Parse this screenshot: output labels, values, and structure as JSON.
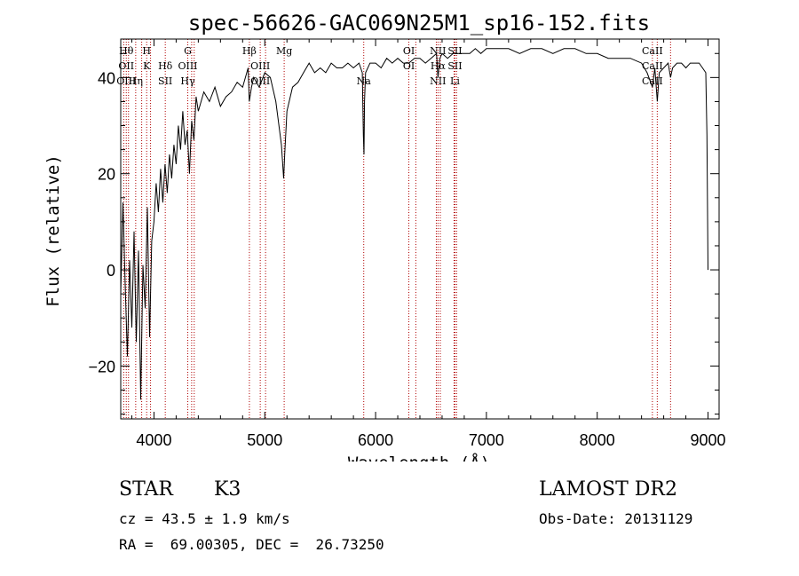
{
  "chart_data": {
    "type": "line",
    "title": "spec-56626-GAC069N25M1_sp16-152.fits",
    "xlabel": "Wavelength (Å)",
    "ylabel": "Flux (relative)",
    "xlim": [
      3700,
      9100
    ],
    "ylim": [
      -31,
      48
    ],
    "x_ticks": [
      4000,
      5000,
      6000,
      7000,
      8000,
      9000
    ],
    "y_ticks": [
      -20,
      0,
      20,
      40
    ],
    "grid": false,
    "series": [
      {
        "x": [
          3700,
          3720,
          3740,
          3760,
          3780,
          3800,
          3820,
          3840,
          3860,
          3880,
          3900,
          3920,
          3940,
          3960,
          3980,
          4000,
          4020,
          4040,
          4060,
          4080,
          4100,
          4120,
          4140,
          4160,
          4180,
          4200,
          4220,
          4240,
          4260,
          4280,
          4300,
          4320,
          4340,
          4360,
          4380,
          4400,
          4450,
          4500,
          4550,
          4600,
          4650,
          4700,
          4750,
          4800,
          4850,
          4860,
          4880,
          4900,
          4950,
          5000,
          5050,
          5100,
          5150,
          5170,
          5180,
          5200,
          5250,
          5300,
          5350,
          5400,
          5450,
          5500,
          5550,
          5600,
          5650,
          5700,
          5750,
          5800,
          5850,
          5880,
          5890,
          5895,
          5900,
          5910,
          5950,
          6000,
          6050,
          6100,
          6150,
          6200,
          6250,
          6300,
          6350,
          6400,
          6450,
          6500,
          6550,
          6563,
          6580,
          6600,
          6650,
          6700,
          6750,
          6800,
          6850,
          6900,
          6950,
          7000,
          7100,
          7200,
          7300,
          7400,
          7500,
          7600,
          7700,
          7800,
          7900,
          8000,
          8100,
          8200,
          8300,
          8400,
          8450,
          8498,
          8520,
          8542,
          8560,
          8600,
          8640,
          8662,
          8680,
          8720,
          8760,
          8800,
          8840,
          8880,
          8920,
          8950,
          8980,
          8990,
          9000
        ],
        "y": [
          -5,
          14,
          -3,
          -18,
          2,
          -12,
          8,
          -15,
          4,
          -27,
          1,
          -8,
          13,
          -14,
          6,
          10,
          18,
          12,
          21,
          14,
          22,
          16,
          24,
          19,
          26,
          22,
          30,
          25,
          33,
          26,
          29,
          20,
          31,
          27,
          36,
          33,
          37,
          35,
          38,
          34,
          36,
          37,
          39,
          38,
          42,
          35,
          38,
          40,
          38,
          41,
          40,
          35,
          26,
          19,
          24,
          33,
          38,
          39,
          41,
          43,
          41,
          42,
          41,
          43,
          42,
          42,
          43,
          42,
          43,
          41,
          28,
          24,
          35,
          41,
          43,
          43,
          42,
          44,
          43,
          44,
          43,
          43,
          44,
          44,
          43,
          44,
          45,
          40,
          44,
          45,
          44,
          45,
          45,
          45,
          45,
          46,
          45,
          46,
          46,
          46,
          45,
          46,
          46,
          45,
          46,
          46,
          45,
          45,
          44,
          44,
          44,
          43,
          41,
          38,
          42,
          35,
          41,
          42,
          43,
          40,
          42,
          43,
          43,
          42,
          43,
          43,
          43,
          42,
          41,
          28,
          0
        ]
      }
    ],
    "lines": [
      {
        "wave": 3750,
        "labels": [
          "Hθ",
          "OII",
          "OIII"
        ],
        "rows": [
          0,
          1,
          2
        ]
      },
      {
        "wave": 3835,
        "labels": [
          "Hη"
        ],
        "rows": [
          2
        ]
      },
      {
        "wave": 3934,
        "labels": [
          "H",
          "K"
        ],
        "rows": [
          0,
          1
        ]
      },
      {
        "wave": 4102,
        "labels": [
          "Hδ",
          "SII"
        ],
        "rows": [
          1,
          2
        ]
      },
      {
        "wave": 4305,
        "labels": [
          "G",
          "OIII",
          "Hγ"
        ],
        "rows": [
          0,
          1,
          2
        ]
      },
      {
        "wave": 4861,
        "labels": [
          "Hβ"
        ],
        "rows": [
          0
        ]
      },
      {
        "wave": 4959,
        "labels": [
          "OIII",
          "OIII"
        ],
        "rows": [
          1,
          2
        ]
      },
      {
        "wave": 5175,
        "labels": [
          "Mg"
        ],
        "rows": [
          0
        ]
      },
      {
        "wave": 5893,
        "labels": [
          "Na"
        ],
        "rows": [
          2
        ]
      },
      {
        "wave": 6300,
        "labels": [
          "OI",
          "OI"
        ],
        "rows": [
          0,
          1
        ]
      },
      {
        "wave": 6563,
        "labels": [
          "NII",
          "Hα",
          "NII"
        ],
        "rows": [
          0,
          1,
          2
        ]
      },
      {
        "wave": 6716,
        "labels": [
          "SII",
          "SII",
          "Li"
        ],
        "rows": [
          0,
          1,
          2
        ]
      },
      {
        "wave": 8498,
        "labels": [
          "CaII",
          "CaII",
          "CaII"
        ],
        "rows": [
          0,
          1,
          2
        ]
      }
    ],
    "line_marks": [
      3727,
      3750,
      3770,
      3835,
      3889,
      3934,
      3969,
      4102,
      4305,
      4340,
      4363,
      4861,
      4959,
      5007,
      5175,
      5893,
      6300,
      6363,
      6548,
      6563,
      6584,
      6708,
      6716,
      6731,
      8498,
      8542,
      8662
    ]
  },
  "info": {
    "class_label": "STAR",
    "subclass": "K3",
    "survey": "LAMOST DR2",
    "cz": "cz = 43.5 ± 1.9 km/s",
    "obs_date": "Obs-Date: 20131129",
    "coords": "RA =  69.00305, DEC =  26.73250"
  }
}
